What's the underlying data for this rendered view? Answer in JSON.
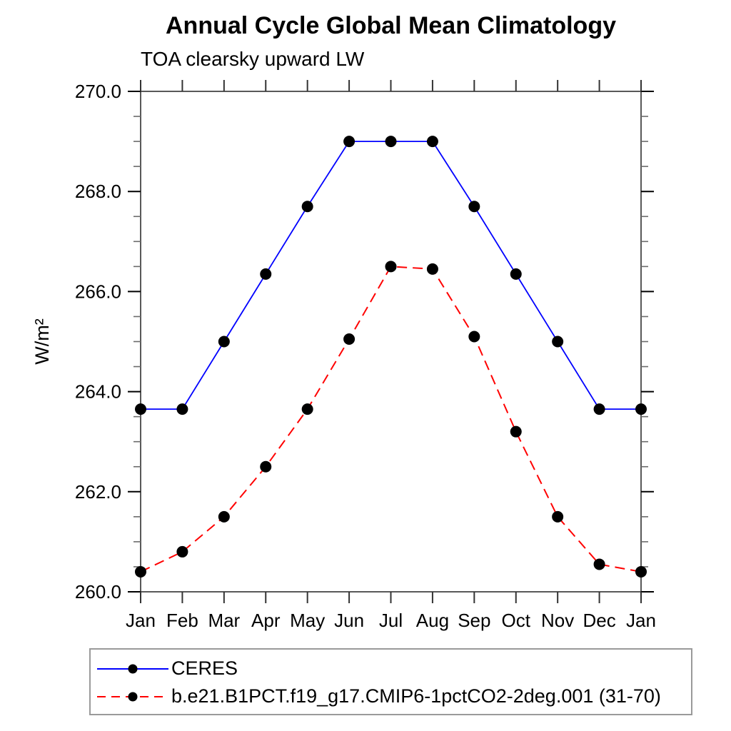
{
  "chart_data": {
    "type": "line",
    "title": "Annual Cycle Global Mean Climatology",
    "subtitle": "TOA clearsky upward LW",
    "ylabel": "W/m²",
    "xlabel": "",
    "x_categories": [
      "Jan",
      "Feb",
      "Mar",
      "Apr",
      "May",
      "Jun",
      "Jul",
      "Aug",
      "Sep",
      "Oct",
      "Nov",
      "Dec",
      "Jan"
    ],
    "ylim": [
      260.0,
      270.0
    ],
    "ytick_major": 2.0,
    "ytick_minor": 0.5,
    "ytick_labels": [
      "260.0",
      "262.0",
      "264.0",
      "266.0",
      "268.0",
      "270.0"
    ],
    "grid": false,
    "legend_position": "bottom-left-outside",
    "series": [
      {
        "name": "CERES",
        "color": "#0000ff",
        "line_style": "solid",
        "marker": "filled-circle",
        "marker_color": "#000000",
        "values": [
          263.65,
          263.65,
          265.0,
          266.35,
          267.7,
          269.0,
          269.0,
          269.0,
          267.7,
          266.35,
          265.0,
          263.65,
          263.65
        ]
      },
      {
        "name": "b.e21.B1PCT.f19_g17.CMIP6-1pctCO2-2deg.001 (31-70)",
        "color": "#ff0000",
        "line_style": "dashed",
        "marker": "filled-circle",
        "marker_color": "#000000",
        "values": [
          260.4,
          260.8,
          261.5,
          262.5,
          263.65,
          265.05,
          266.5,
          266.45,
          265.1,
          263.2,
          261.5,
          260.55,
          260.4
        ]
      }
    ]
  }
}
